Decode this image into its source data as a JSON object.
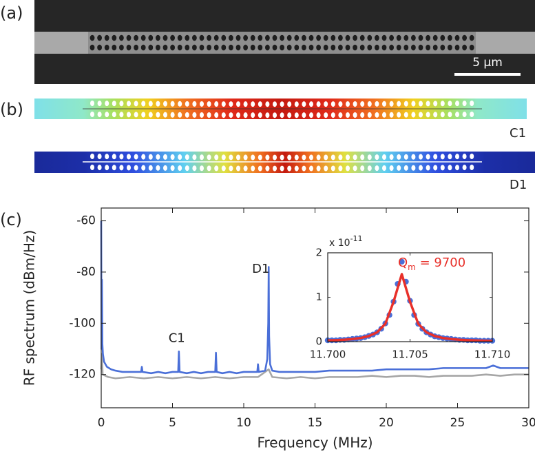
{
  "panel_labels": [
    "(a)",
    "(b)",
    "(c)"
  ],
  "panel_a": {
    "scale_bar": "5 µm"
  },
  "panel_b": {
    "mode_labels": [
      "C1",
      "D1"
    ]
  },
  "chart_data": [
    {
      "type": "line",
      "xlabel": "Frequency (MHz)",
      "ylabel": "RF spectrum (dBm/Hz)",
      "xlim": [
        0,
        30
      ],
      "ylim": [
        -133,
        -55
      ],
      "xticks": [
        0,
        5,
        10,
        15,
        20,
        25,
        30
      ],
      "yticks": [
        -60,
        -80,
        -100,
        -120
      ],
      "annotations": [
        "C1",
        "D1"
      ],
      "series": [
        {
          "type": "line",
          "color": "#a6a6a6",
          "x": [
            0,
            0.05,
            0.1,
            0.5,
            1,
            2,
            3,
            4,
            5,
            6,
            7,
            8,
            9,
            10,
            11,
            11.75,
            12,
            13,
            14,
            15,
            16,
            17,
            18,
            19,
            20,
            21,
            22,
            23,
            24,
            25,
            26,
            27,
            28,
            29,
            30
          ],
          "values": [
            -118,
            -112,
            -120,
            -121,
            -121.5,
            -121,
            -121.5,
            -121,
            -121.5,
            -121,
            -121.5,
            -121,
            -121.5,
            -121,
            -121,
            -118,
            -121,
            -121.5,
            -121,
            -121.5,
            -121,
            -121,
            -121,
            -120.5,
            -121,
            -120.5,
            -120.5,
            -121,
            -120.5,
            -120.5,
            -120.5,
            -120,
            -120.5,
            -120,
            -120
          ]
        },
        {
          "type": "line",
          "color": "#4a6fd8",
          "x": [
            0,
            0.02,
            0.05,
            0.08,
            0.12,
            0.2,
            0.4,
            0.7,
            1,
            1.5,
            2,
            2.5,
            2.8,
            2.85,
            2.9,
            3.5,
            4,
            4.5,
            5,
            5.4,
            5.45,
            5.5,
            6,
            6.5,
            7,
            7.5,
            8.0,
            8.05,
            8.1,
            8.5,
            9,
            9.5,
            10,
            10.5,
            10.95,
            11.0,
            11.05,
            11.5,
            11.65,
            11.72,
            11.75,
            11.78,
            11.85,
            12,
            12.5,
            13,
            14,
            15,
            16,
            17,
            18,
            19,
            20,
            21,
            22,
            23,
            24,
            25,
            26,
            27,
            27.5,
            28,
            29,
            30
          ],
          "values": [
            -60,
            -110,
            -83,
            -108,
            -112,
            -115,
            -117,
            -118,
            -118.5,
            -119,
            -119,
            -119,
            -119,
            -117,
            -119,
            -119.5,
            -119,
            -119.5,
            -119,
            -119,
            -111,
            -119,
            -119.5,
            -119,
            -119.5,
            -119,
            -119,
            -111.5,
            -119,
            -119.5,
            -119,
            -119.5,
            -119,
            -119,
            -119,
            -116,
            -119,
            -118.5,
            -114,
            -100,
            -78,
            -105,
            -116,
            -118.5,
            -119,
            -119,
            -119,
            -119,
            -118.5,
            -118.5,
            -118.5,
            -118.5,
            -118,
            -118,
            -118,
            -118,
            -117.5,
            -117.5,
            -117.5,
            -117.5,
            -116.5,
            -117.5,
            -117.5,
            -117.5
          ]
        }
      ]
    },
    {
      "type": "line",
      "xlim": [
        11.7,
        11.71
      ],
      "ylim": [
        0,
        2
      ],
      "xticks": [
        {
          "value": 11.7,
          "label": "11.700"
        },
        {
          "value": 11.705,
          "label": "11.705"
        },
        {
          "value": 11.71,
          "label": "11.710"
        }
      ],
      "yticks": [
        0,
        1,
        2
      ],
      "multiplier": [
        "x 10",
        "-11"
      ],
      "fit_label": [
        "Q",
        "m",
        " = 9700"
      ],
      "series": [
        {
          "type": "scatter",
          "color": "#4a6fd8",
          "x": [
            11.7,
            11.70025,
            11.7005,
            11.70075,
            11.701,
            11.70125,
            11.7015,
            11.70175,
            11.702,
            11.70225,
            11.7025,
            11.70275,
            11.703,
            11.70325,
            11.7035,
            11.70375,
            11.704,
            11.70425,
            11.7045,
            11.70475,
            11.705,
            11.70525,
            11.7055,
            11.70575,
            11.706,
            11.70625,
            11.7065,
            11.70675,
            11.707,
            11.70725,
            11.7075,
            11.70775,
            11.708,
            11.70825,
            11.7085,
            11.70875,
            11.709,
            11.70925,
            11.7095,
            11.70975,
            11.71
          ],
          "values": [
            0.03,
            0.03,
            0.03,
            0.04,
            0.04,
            0.05,
            0.06,
            0.07,
            0.08,
            0.1,
            0.13,
            0.16,
            0.21,
            0.29,
            0.41,
            0.6,
            0.9,
            1.3,
            1.8,
            1.35,
            0.92,
            0.6,
            0.4,
            0.29,
            0.21,
            0.16,
            0.12,
            0.1,
            0.08,
            0.07,
            0.06,
            0.05,
            0.04,
            0.04,
            0.03,
            0.03,
            0.03,
            0.02,
            0.02,
            0.02,
            0.02
          ]
        },
        {
          "type": "line",
          "color": "#e8302a",
          "x": [
            11.7,
            11.7005,
            11.701,
            11.7015,
            11.702,
            11.7025,
            11.703,
            11.7035,
            11.704,
            11.7045,
            11.705,
            11.7055,
            11.706,
            11.7065,
            11.707,
            11.7075,
            11.708,
            11.7085,
            11.709,
            11.7095,
            11.71
          ],
          "values": [
            0.027,
            0.033,
            0.043,
            0.058,
            0.083,
            0.126,
            0.21,
            0.402,
            0.897,
            1.52,
            0.897,
            0.402,
            0.21,
            0.126,
            0.083,
            0.058,
            0.043,
            0.033,
            0.027,
            0.022,
            0.018
          ]
        }
      ]
    }
  ]
}
